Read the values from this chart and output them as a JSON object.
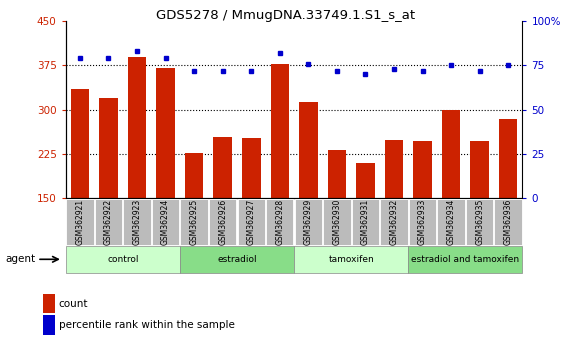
{
  "title": "GDS5278 / MmugDNA.33749.1.S1_s_at",
  "samples": [
    "GSM362921",
    "GSM362922",
    "GSM362923",
    "GSM362924",
    "GSM362925",
    "GSM362926",
    "GSM362927",
    "GSM362928",
    "GSM362929",
    "GSM362930",
    "GSM362931",
    "GSM362932",
    "GSM362933",
    "GSM362934",
    "GSM362935",
    "GSM362936"
  ],
  "counts": [
    335,
    320,
    390,
    370,
    226,
    253,
    252,
    378,
    313,
    232,
    210,
    248,
    247,
    300,
    247,
    285
  ],
  "percentiles": [
    79,
    79,
    83,
    79,
    72,
    72,
    72,
    82,
    76,
    72,
    70,
    73,
    72,
    75,
    72,
    75
  ],
  "bar_color": "#cc2200",
  "dot_color": "#0000cc",
  "ylim_left": [
    150,
    450
  ],
  "ylim_right": [
    0,
    100
  ],
  "yticks_left": [
    150,
    225,
    300,
    375,
    450
  ],
  "yticks_right": [
    0,
    25,
    50,
    75,
    100
  ],
  "grid_lines": [
    225,
    300,
    375
  ],
  "groups": [
    {
      "label": "control",
      "start": 0,
      "end": 4,
      "color": "#ccffcc"
    },
    {
      "label": "estradiol",
      "start": 4,
      "end": 8,
      "color": "#88dd88"
    },
    {
      "label": "tamoxifen",
      "start": 8,
      "end": 12,
      "color": "#ccffcc"
    },
    {
      "label": "estradiol and tamoxifen",
      "start": 12,
      "end": 16,
      "color": "#88dd88"
    }
  ],
  "agent_label": "agent",
  "legend_count_label": "count",
  "legend_percentile_label": "percentile rank within the sample",
  "tick_area_color": "#bbbbbb"
}
